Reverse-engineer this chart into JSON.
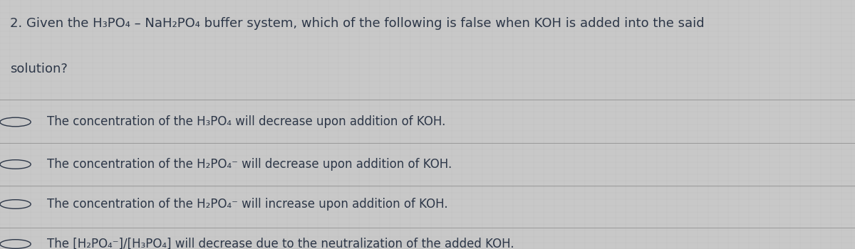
{
  "background_color": "#c8c8c8",
  "text_color": "#2d3748",
  "question_line1": "2. Given the H₃PO₄ – NaH₂PO₄ buffer system, which of the following is false when KOH is added into the said",
  "question_line2": "solution?",
  "options": [
    "The concentration of the H₃PO₄ will decrease upon addition of KOH.",
    "The concentration of the H₂PO₄⁻ will decrease upon addition of KOH.",
    "The concentration of the H₂PO₄⁻ will increase upon addition of KOH.",
    "The [H₂PO₄⁻]/[H₃PO₄] will decrease due to the neutralization of the added KOH."
  ],
  "divider_color": "#999999",
  "font_size_question": 13.0,
  "font_size_option": 12.0,
  "fig_width": 12.0,
  "fig_height": 3.5,
  "dpi": 100
}
